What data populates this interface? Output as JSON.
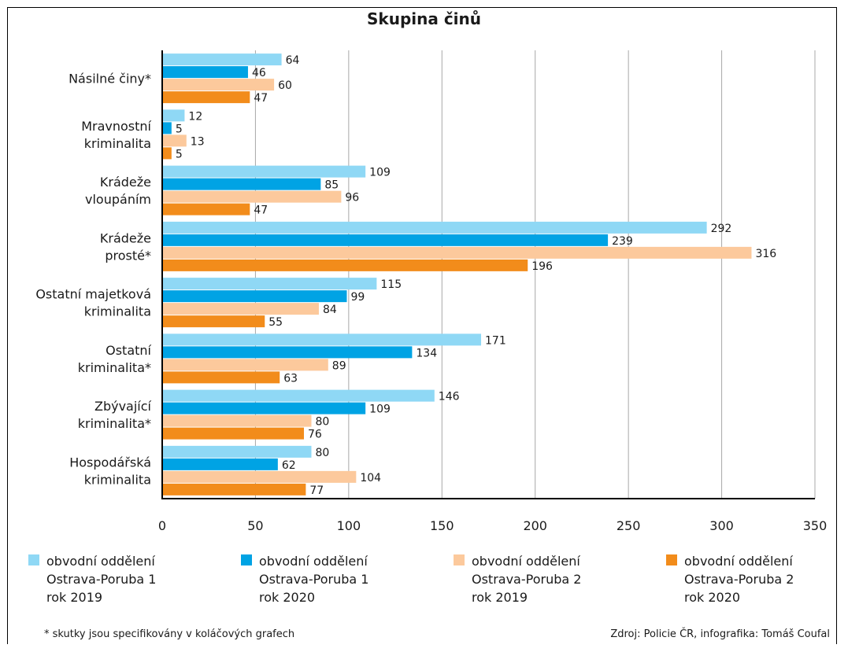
{
  "chart_data": {
    "type": "bar",
    "orientation": "horizontal",
    "title": "Skupina činů",
    "categories": [
      [
        "Násilné činy*"
      ],
      [
        "Mravnostní",
        "kriminalita"
      ],
      [
        "Krádeže",
        "vloupáním"
      ],
      [
        "Krádeže",
        "prosté*"
      ],
      [
        "Ostatní majetková",
        "kriminalita"
      ],
      [
        "Ostatní",
        "kriminalita*"
      ],
      [
        "Zbývající",
        "kriminalita*"
      ],
      [
        "Hospodářská",
        "kriminalita"
      ]
    ],
    "series": [
      {
        "name": [
          "obvodní oddělení",
          "Ostrava-Poruba 1",
          "rok 2019"
        ],
        "color": "#8fd8f5",
        "values": [
          64,
          12,
          109,
          292,
          115,
          171,
          146,
          80
        ]
      },
      {
        "name": [
          "obvodní oddělení",
          "Ostrava-Poruba 1",
          "rok 2020"
        ],
        "color": "#00a3e4",
        "values": [
          46,
          5,
          85,
          239,
          99,
          134,
          109,
          62
        ]
      },
      {
        "name": [
          "obvodní oddělení",
          "Ostrava-Poruba 2",
          "rok 2019"
        ],
        "color": "#fcc99c",
        "values": [
          60,
          13,
          96,
          316,
          84,
          89,
          80,
          104
        ]
      },
      {
        "name": [
          "obvodní oddělení",
          "Ostrava-Poruba 2",
          "rok 2020"
        ],
        "color": "#f28c1b",
        "values": [
          47,
          5,
          47,
          196,
          55,
          63,
          76,
          77
        ]
      }
    ],
    "xlim": [
      0,
      350
    ],
    "xticks": [
      0,
      50,
      100,
      150,
      200,
      250,
      300,
      350
    ],
    "grid": true,
    "legend_position": "bottom"
  },
  "footnote": "* skutky jsou specifikovány v koláčových grafech",
  "source": "Zdroj: Policie ČR, infografika: Tomáš Coufal"
}
